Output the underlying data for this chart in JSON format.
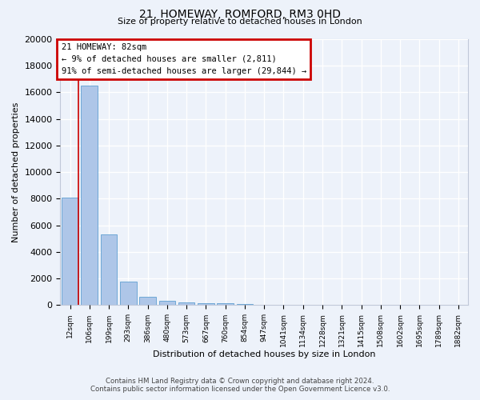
{
  "title": "21, HOMEWAY, ROMFORD, RM3 0HD",
  "subtitle": "Size of property relative to detached houses in London",
  "xlabel": "Distribution of detached houses by size in London",
  "ylabel": "Number of detached properties",
  "categories": [
    "12sqm",
    "106sqm",
    "199sqm",
    "293sqm",
    "386sqm",
    "480sqm",
    "573sqm",
    "667sqm",
    "760sqm",
    "854sqm",
    "947sqm",
    "1041sqm",
    "1134sqm",
    "1228sqm",
    "1321sqm",
    "1415sqm",
    "1508sqm",
    "1602sqm",
    "1695sqm",
    "1789sqm",
    "1882sqm"
  ],
  "values": [
    8100,
    16500,
    5300,
    1750,
    650,
    320,
    200,
    170,
    150,
    110,
    0,
    0,
    0,
    0,
    0,
    0,
    0,
    0,
    0,
    0,
    0
  ],
  "bar_color": "#aec6e8",
  "bar_edge_color": "#6fa8d6",
  "annotation_title": "21 HOMEWAY: 82sqm",
  "annotation_line1": "← 9% of detached houses are smaller (2,811)",
  "annotation_line2": "91% of semi-detached houses are larger (29,844) →",
  "annotation_box_edge_color": "#cc0000",
  "ylim": [
    0,
    20000
  ],
  "yticks": [
    0,
    2000,
    4000,
    6000,
    8000,
    10000,
    12000,
    14000,
    16000,
    18000,
    20000
  ],
  "footer_line1": "Contains HM Land Registry data © Crown copyright and database right 2024.",
  "footer_line2": "Contains public sector information licensed under the Open Government Licence v3.0.",
  "bg_color": "#edf2fa",
  "grid_color": "#ffffff",
  "red_line_color": "#cc0000",
  "red_line_x": 0.425,
  "title_fontsize": 10,
  "subtitle_fontsize": 8
}
